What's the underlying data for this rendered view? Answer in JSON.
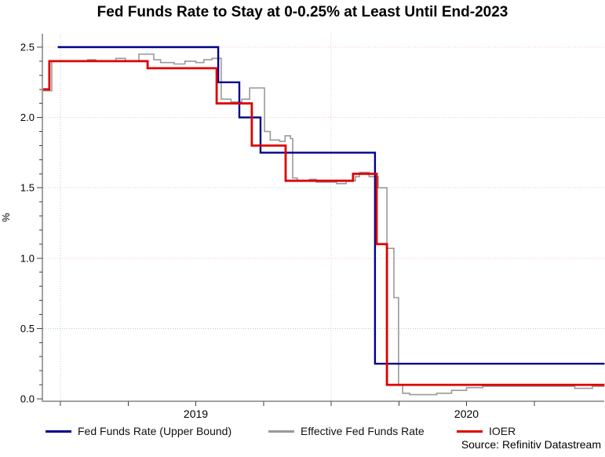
{
  "title": "Fed Funds Rate to Stay at 0-0.25% at Least Until End-2023",
  "source": "Source: Refinitiv Datastream",
  "legend": [
    {
      "id": "fed-funds-upper-bound",
      "label": "Fed Funds Rate (Upper Bound)",
      "color": "#00008b"
    },
    {
      "id": "effective-fed-funds-rate",
      "label": "Effective Fed Funds Rate",
      "color": "#999999"
    },
    {
      "id": "ioer",
      "label": "IOER",
      "color": "#dd0000"
    }
  ],
  "y_axis": {
    "label": "%",
    "ticks": [
      {
        "label": "2.5",
        "value": 2.5
      },
      {
        "label": "2.0",
        "value": 2.0
      },
      {
        "label": "1.5",
        "value": 1.5
      },
      {
        "label": "1.0",
        "value": 1.0
      },
      {
        "label": "0.5",
        "value": 0.5
      },
      {
        "label": "0.0",
        "value": 0.0
      }
    ],
    "minor_tick_step": 0.1
  },
  "x_axis": {
    "labels": [
      {
        "text": "2019",
        "year": 2019.5
      },
      {
        "text": "2020",
        "year": 2020.5
      }
    ]
  },
  "chart_data": {
    "type": "line",
    "step": true,
    "x_range": [
      2018.936,
      2021.01
    ],
    "y_range": [
      0,
      2.58
    ],
    "axis_color": "#a2a2a2",
    "tick_color": "#404040",
    "x_ticks_quarterly": [
      2019.0,
      2019.25,
      2019.5,
      2019.75,
      2020.0,
      2020.25,
      2020.5,
      2020.75
    ],
    "grid": {
      "h": [
        {
          "v": 2.5,
          "color": "#f5c8b8"
        },
        {
          "v": 2.0,
          "color": "#f5c8b8"
        },
        {
          "v": 1.5,
          "color": "#bfd8c8"
        },
        {
          "v": 1.0,
          "color": "#f5c8b8"
        },
        {
          "v": 0.5,
          "color": "#a8d8b0"
        }
      ],
      "v": [
        {
          "year": 2019.0,
          "color": "#b5cbe6"
        },
        {
          "year": 2020.0,
          "color": "#f5c4c4"
        }
      ]
    },
    "series": [
      {
        "id": "effective-fed-funds-rate",
        "name": "Effective Fed Funds Rate",
        "color": "#999999",
        "width": 1.6,
        "points": [
          [
            2018.936,
            2.19
          ],
          [
            2018.968,
            2.4
          ],
          [
            2019.1,
            2.41
          ],
          [
            2019.13,
            2.4
          ],
          [
            2019.205,
            2.42
          ],
          [
            2019.24,
            2.4
          ],
          [
            2019.29,
            2.45
          ],
          [
            2019.345,
            2.41
          ],
          [
            2019.37,
            2.39
          ],
          [
            2019.42,
            2.38
          ],
          [
            2019.46,
            2.4
          ],
          [
            2019.5,
            2.39
          ],
          [
            2019.53,
            2.41
          ],
          [
            2019.56,
            2.42
          ],
          [
            2019.594,
            2.13
          ],
          [
            2019.63,
            2.11
          ],
          [
            2019.67,
            2.13
          ],
          [
            2019.699,
            2.21
          ],
          [
            2019.754,
            1.9
          ],
          [
            2019.775,
            1.84
          ],
          [
            2019.81,
            1.83
          ],
          [
            2019.83,
            1.87
          ],
          [
            2019.85,
            1.85
          ],
          [
            2019.858,
            1.57
          ],
          [
            2019.875,
            1.55
          ],
          [
            2019.92,
            1.56
          ],
          [
            2019.945,
            1.54
          ],
          [
            2020.02,
            1.53
          ],
          [
            2020.055,
            1.55
          ],
          [
            2020.09,
            1.58
          ],
          [
            2020.105,
            1.61
          ],
          [
            2020.14,
            1.58
          ],
          [
            2020.174,
            1.5
          ],
          [
            2020.206,
            1.07
          ],
          [
            2020.232,
            0.72
          ],
          [
            2020.249,
            0.1
          ],
          [
            2020.264,
            0.04
          ],
          [
            2020.29,
            0.03
          ],
          [
            2020.39,
            0.04
          ],
          [
            2020.445,
            0.06
          ],
          [
            2020.5,
            0.08
          ],
          [
            2020.56,
            0.09
          ],
          [
            2020.9,
            0.075
          ],
          [
            2020.965,
            0.09
          ]
        ]
      },
      {
        "id": "fed-funds-upper-bound",
        "name": "Fed Funds Rate (Upper Bound)",
        "color": "#00008b",
        "width": 2.4,
        "points": [
          [
            2018.99,
            2.5
          ],
          [
            2019.583,
            2.25
          ],
          [
            2019.661,
            2.0
          ],
          [
            2019.739,
            1.75
          ],
          [
            2020.162,
            0.25
          ]
        ]
      },
      {
        "id": "ioer",
        "name": "IOER",
        "color": "#dd0000",
        "width": 2.8,
        "points": [
          [
            2018.936,
            2.2
          ],
          [
            2018.959,
            2.4
          ],
          [
            2019.322,
            2.35
          ],
          [
            2019.577,
            2.1
          ],
          [
            2019.707,
            1.8
          ],
          [
            2019.832,
            1.55
          ],
          [
            2020.081,
            1.6
          ],
          [
            2020.168,
            1.1
          ],
          [
            2020.206,
            0.1
          ]
        ]
      }
    ]
  }
}
